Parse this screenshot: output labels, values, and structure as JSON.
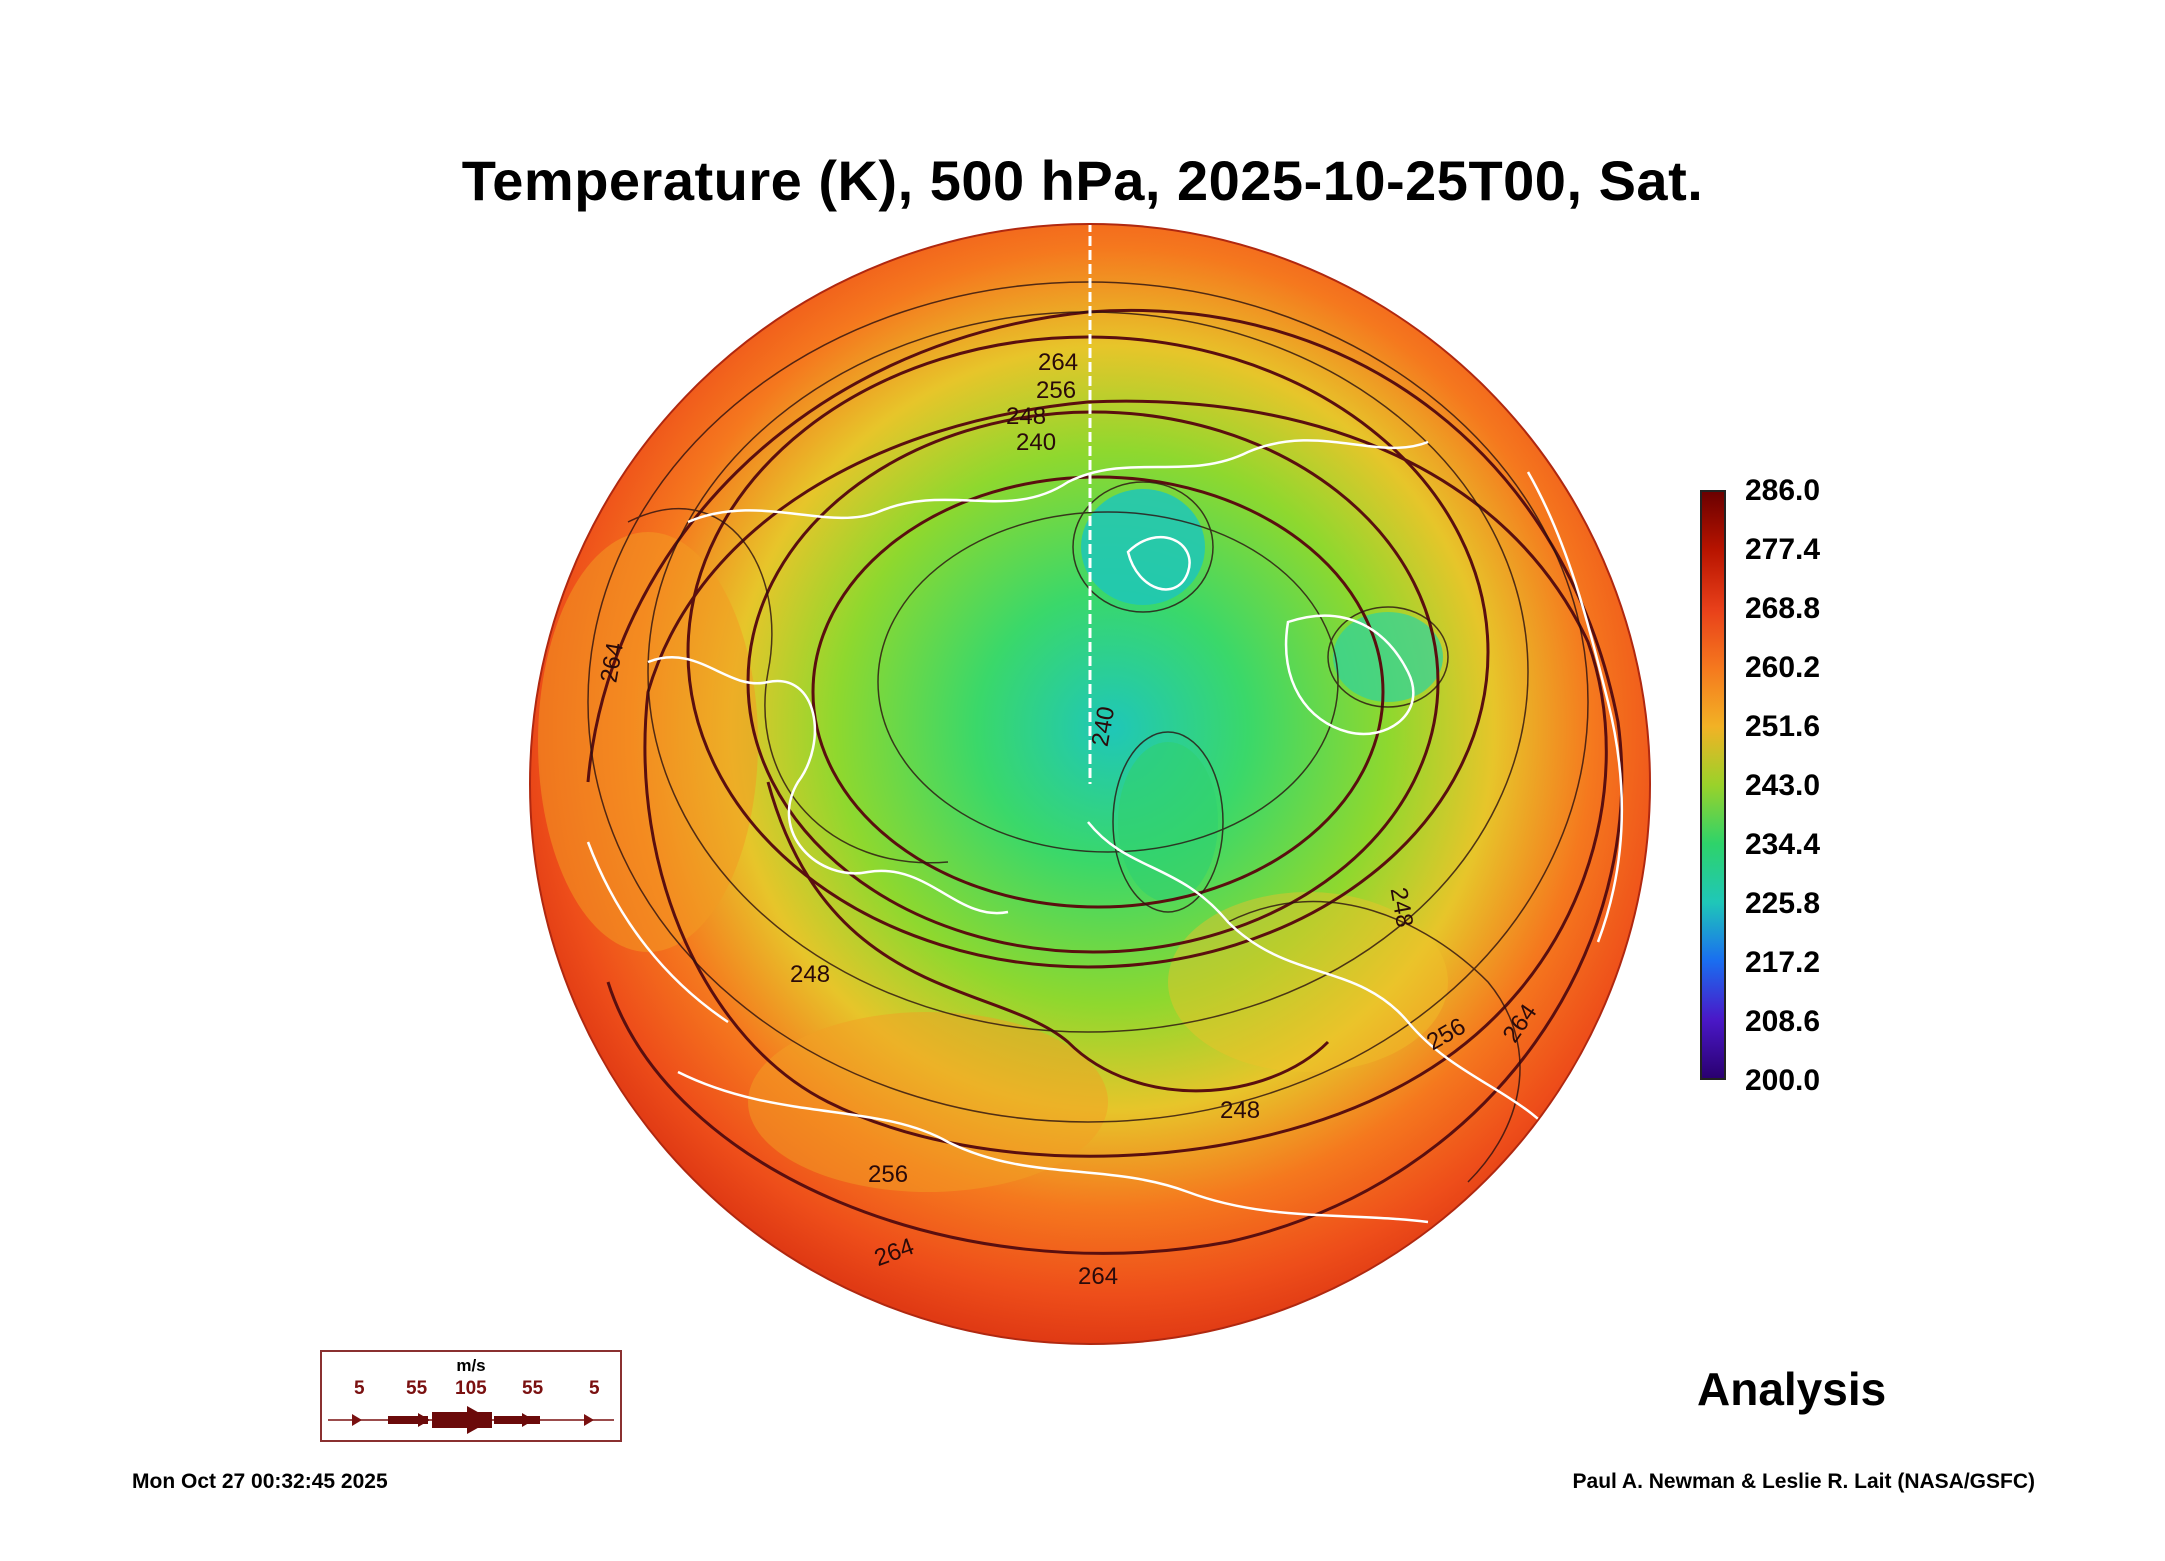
{
  "title": "Temperature (K), 500 hPa, 2025-10-25T00, Sat.",
  "colorbar": {
    "min": 200.0,
    "max": 286.0,
    "labels": [
      "286.0",
      "277.4",
      "268.8",
      "260.2",
      "251.6",
      "243.0",
      "234.4",
      "225.8",
      "217.2",
      "208.6",
      "200.0"
    ],
    "colors": [
      "#6b0000",
      "#b81400",
      "#e8401a",
      "#f5781e",
      "#f2b225",
      "#9ad22a",
      "#2ed36a",
      "#1fc7b8",
      "#1a6ef0",
      "#4a18c8",
      "#2a0070"
    ]
  },
  "contour_labels": [
    "264",
    "256",
    "248",
    "240",
    "240",
    "248",
    "248",
    "256",
    "256",
    "264",
    "264",
    "264",
    "248",
    "264"
  ],
  "vector_legend": {
    "units": "m/s",
    "values": [
      "5",
      "55",
      "105",
      "55",
      "5"
    ]
  },
  "analysis_label": "Analysis",
  "footer": {
    "timestamp": "Mon Oct 27 00:32:45 2025",
    "credit": "Paul A. Newman & Leslie R. Lait (NASA/GSFC)"
  }
}
